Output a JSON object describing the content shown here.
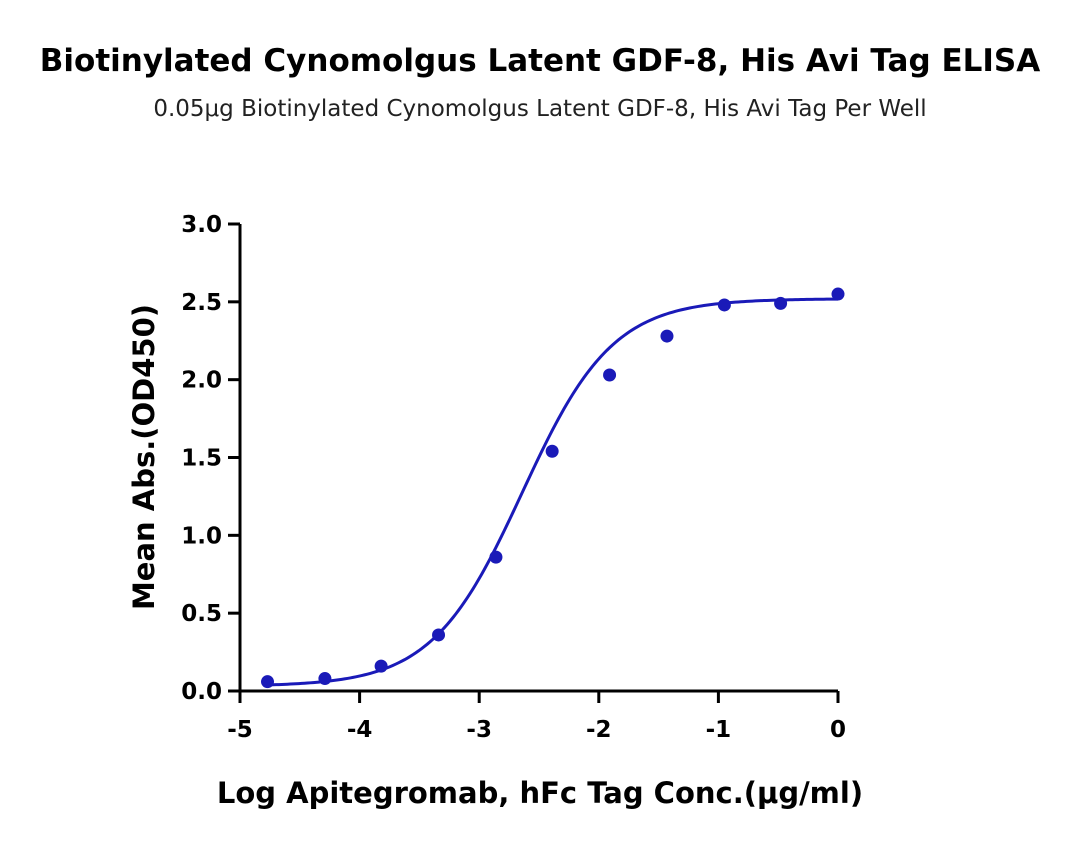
{
  "chart_data": {
    "type": "scatter",
    "title": "Biotinylated Cynomolgus Latent GDF-8, His Avi Tag ELISA",
    "subtitle": "0.05μg Biotinylated Cynomolgus Latent GDF-8, His Avi Tag Per Well",
    "xlabel": "Log Apitegromab, hFc Tag Conc.(μg/ml)",
    "ylabel": "Mean Abs.(OD450)",
    "xlim": [
      -5,
      0
    ],
    "ylim": [
      0,
      3.0
    ],
    "x_ticks": [
      "-5",
      "-4",
      "-3",
      "-2",
      "-1",
      "0"
    ],
    "y_ticks": [
      "0.0",
      "0.5",
      "1.0",
      "1.5",
      "2.0",
      "2.5",
      "3.0"
    ],
    "grid": false,
    "color": "#1a1ab8",
    "series": [
      {
        "points": [
          {
            "x": -4.77,
            "y": 0.06
          },
          {
            "x": -4.29,
            "y": 0.08
          },
          {
            "x": -3.82,
            "y": 0.16
          },
          {
            "x": -3.34,
            "y": 0.36
          },
          {
            "x": -2.86,
            "y": 0.86
          },
          {
            "x": -2.39,
            "y": 1.54
          },
          {
            "x": -1.91,
            "y": 2.03
          },
          {
            "x": -1.43,
            "y": 2.28
          },
          {
            "x": -0.95,
            "y": 2.48
          },
          {
            "x": -0.48,
            "y": 2.49
          },
          {
            "x": 0.0,
            "y": 2.55
          }
        ],
        "fit": {
          "model": "4PL",
          "bottom": 0.03,
          "top": 2.52,
          "logEC50": -2.64,
          "hill": 1.15
        }
      }
    ]
  }
}
